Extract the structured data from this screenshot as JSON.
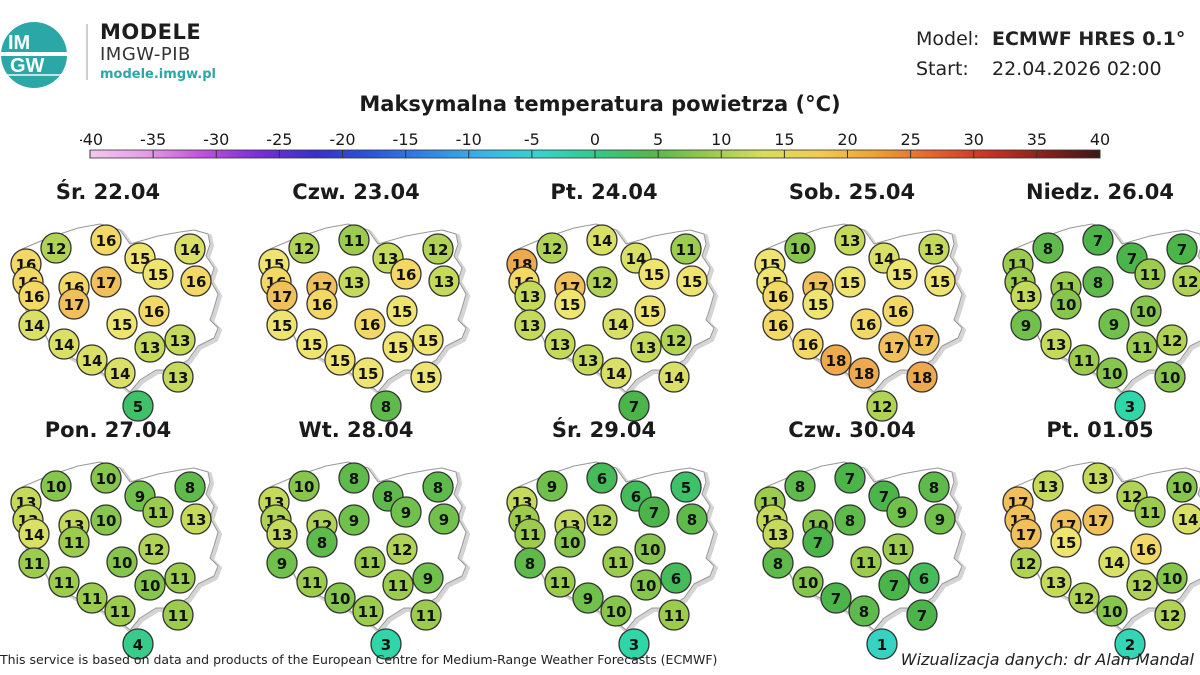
{
  "header": {
    "logo_text": "IMGW",
    "brand_title": "MODELE",
    "brand_sub": "IMGW-PIB",
    "brand_url": "modele.imgw.pl",
    "model_label": "Model:",
    "model_value": "ECMWF HRES 0.1°",
    "start_label": "Start:",
    "start_value": "22.04.2026 02:00"
  },
  "title": "Maksymalna temperatura powietrza (°C)",
  "scale": {
    "ticks": [
      "-40",
      "-35",
      "-30",
      "-25",
      "-20",
      "-15",
      "-10",
      "-5",
      "0",
      "5",
      "10",
      "15",
      "20",
      "25",
      "30",
      "35",
      "40"
    ],
    "colors": [
      "#f3c8f0",
      "#e79ae7",
      "#c54fe0",
      "#7a2ed6",
      "#3930c8",
      "#2a56d8",
      "#2e86e6",
      "#39b3ec",
      "#38d3cf",
      "#32c98a",
      "#53b84a",
      "#97c94a",
      "#d7dd5c",
      "#f2cb50",
      "#f0a032",
      "#e4652a",
      "#c63424",
      "#8a1f1c",
      "#3a1818"
    ]
  },
  "days": [
    {
      "label": "Śr. 22.04",
      "values": [
        16,
        12,
        16,
        15,
        14,
        16,
        16,
        17,
        15,
        16,
        16,
        17,
        16,
        14,
        15,
        13,
        14,
        13,
        14,
        14,
        13,
        5
      ]
    },
    {
      "label": "Czw. 23.04",
      "values": [
        15,
        12,
        11,
        13,
        12,
        16,
        17,
        13,
        16,
        13,
        17,
        16,
        15,
        15,
        16,
        15,
        15,
        15,
        15,
        15,
        15,
        8
      ]
    },
    {
      "label": "Pt. 24.04",
      "values": [
        18,
        12,
        14,
        14,
        11,
        16,
        17,
        12,
        15,
        15,
        13,
        15,
        15,
        13,
        14,
        12,
        13,
        13,
        13,
        14,
        14,
        7
      ]
    },
    {
      "label": "Sob. 25.04",
      "values": [
        15,
        10,
        13,
        14,
        13,
        15,
        17,
        15,
        15,
        15,
        16,
        15,
        16,
        16,
        16,
        17,
        16,
        17,
        18,
        18,
        18,
        12
      ]
    },
    {
      "label": "Niedz. 26.04",
      "values": [
        11,
        8,
        7,
        7,
        7,
        11,
        11,
        8,
        11,
        12,
        13,
        10,
        10,
        9,
        9,
        12,
        13,
        11,
        11,
        10,
        10,
        3
      ]
    },
    {
      "label": "Pon. 27.04",
      "values": [
        13,
        10,
        10,
        9,
        8,
        13,
        13,
        10,
        11,
        13,
        14,
        11,
        12,
        11,
        10,
        11,
        11,
        10,
        11,
        11,
        11,
        4
      ]
    },
    {
      "label": "Wt. 28.04",
      "values": [
        13,
        10,
        8,
        8,
        8,
        12,
        12,
        9,
        9,
        9,
        13,
        8,
        12,
        9,
        11,
        9,
        11,
        11,
        10,
        11,
        11,
        3
      ]
    },
    {
      "label": "Śr. 29.04",
      "values": [
        13,
        9,
        6,
        6,
        5,
        11,
        13,
        12,
        7,
        8,
        11,
        10,
        10,
        8,
        11,
        6,
        11,
        10,
        9,
        10,
        11,
        3
      ]
    },
    {
      "label": "Czw. 30.04",
      "values": [
        11,
        8,
        7,
        7,
        8,
        13,
        10,
        8,
        9,
        9,
        13,
        7,
        11,
        8,
        11,
        6,
        10,
        7,
        7,
        8,
        7,
        1
      ]
    },
    {
      "label": "Pt. 01.05",
      "values": [
        17,
        13,
        13,
        12,
        10,
        17,
        17,
        17,
        11,
        14,
        17,
        15,
        16,
        12,
        14,
        10,
        13,
        12,
        12,
        10,
        12,
        2
      ]
    }
  ],
  "footer": {
    "left": "This service is based on data and products of the European Centre for Medium-Range Weather Forecasts (ECMWF)",
    "right": "Wizualizacja danych: dr Alan Mandal"
  }
}
